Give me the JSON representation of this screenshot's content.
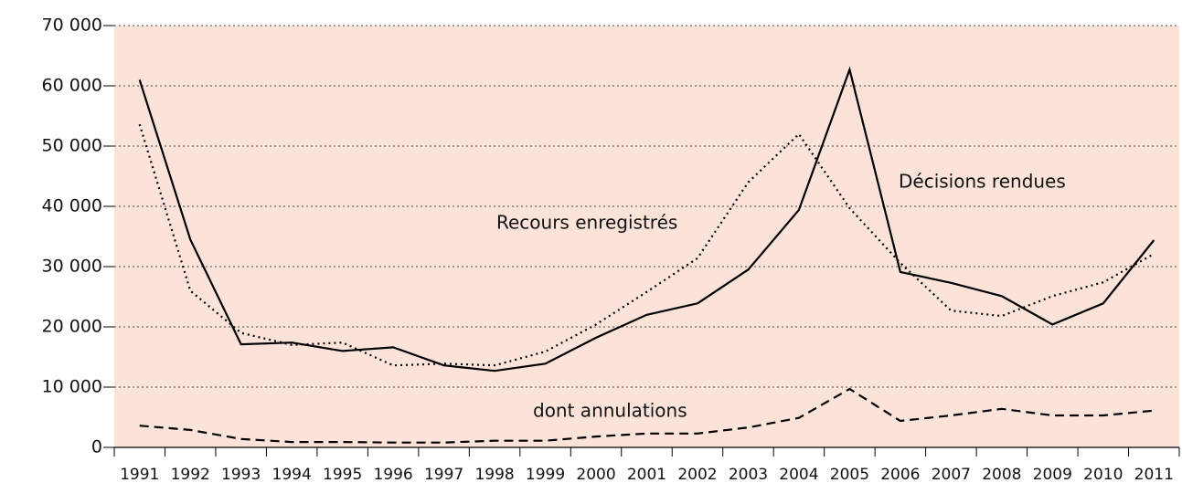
{
  "chart_data": {
    "type": "line",
    "categories": [
      "1991",
      "1992",
      "1993",
      "1994",
      "1995",
      "1996",
      "1997",
      "1998",
      "1999",
      "2000",
      "2001",
      "2002",
      "2003",
      "2004",
      "2005",
      "2006",
      "2007",
      "2008",
      "2009",
      "2010",
      "2011"
    ],
    "series": [
      {
        "name": "Décisions rendues",
        "color": "#000000",
        "linestyle": "solid",
        "values": [
          61000,
          34500,
          17100,
          17400,
          16000,
          16600,
          13600,
          12700,
          13900,
          18200,
          22000,
          23900,
          29500,
          39400,
          62700,
          29100,
          27300,
          25100,
          20400,
          23900,
          34400
        ]
      },
      {
        "name": "Recours enregistrés",
        "color": "#000000",
        "linestyle": "dotted",
        "values": [
          53600,
          26000,
          19000,
          17000,
          17400,
          13600,
          13900,
          13600,
          15900,
          20400,
          25800,
          31400,
          44000,
          52000,
          39700,
          30600,
          22700,
          21800,
          25100,
          27400,
          32100
        ]
      },
      {
        "name": "dont annulations",
        "color": "#000000",
        "linestyle": "dashed",
        "values": [
          3600,
          2900,
          1400,
          900,
          900,
          800,
          800,
          1100,
          1100,
          1800,
          2300,
          2300,
          3300,
          4900,
          9700,
          4400,
          5300,
          6400,
          5300,
          5300,
          6100
        ]
      }
    ],
    "ylim": [
      0,
      70000
    ],
    "yticks": [
      {
        "value": 0,
        "label": "0"
      },
      {
        "value": 10000,
        "label": "10 000"
      },
      {
        "value": 20000,
        "label": "20 000"
      },
      {
        "value": 30000,
        "label": "30 000"
      },
      {
        "value": 40000,
        "label": "40 000"
      },
      {
        "value": 50000,
        "label": "50 000"
      },
      {
        "value": 60000,
        "label": "60 000"
      },
      {
        "value": 70000,
        "label": "70 000"
      }
    ],
    "grid": true,
    "background": "#fbe3da"
  }
}
